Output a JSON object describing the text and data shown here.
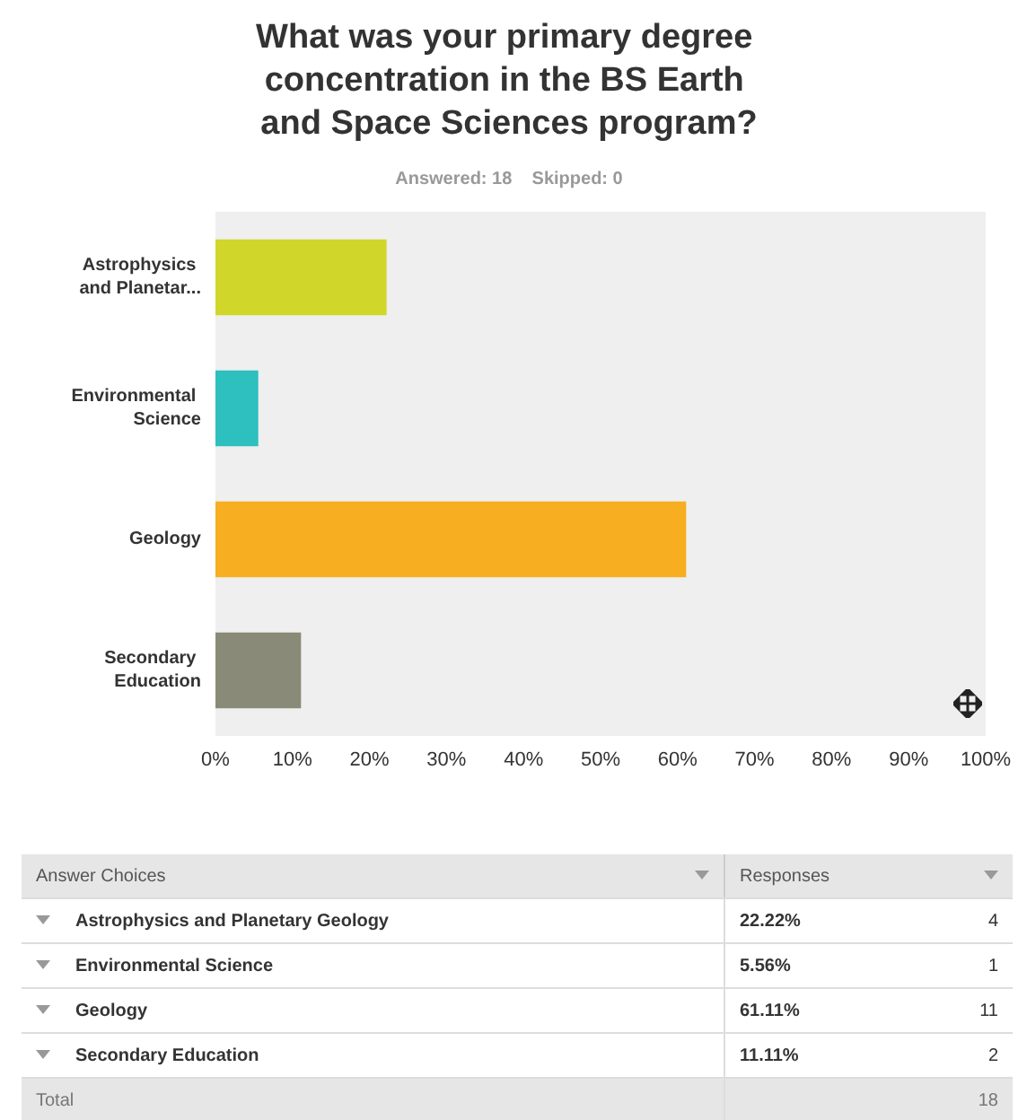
{
  "chart_data": [
    {
      "type": "bar",
      "orientation": "horizontal",
      "title": "What was your primary degree concentration in the BS Earth and Space Sciences program?",
      "subtitle": "Answered: 18    Skipped: 0",
      "categories": [
        "Astrophysics and Planetar...",
        "Environmental Science",
        "Geology",
        "Secondary Education"
      ],
      "values": [
        22.22,
        5.56,
        61.11,
        11.11
      ],
      "value_labels": [
        "22.22%",
        "5.56%",
        "61.11%",
        "11.11%"
      ],
      "colors": [
        "#d0d62a",
        "#2ebfbf",
        "#f7ae20",
        "#8a8a78"
      ],
      "xlim": [
        0,
        100
      ],
      "xticks": [
        {
          "value": 0,
          "label": "0%"
        },
        {
          "value": 10,
          "label": "10%"
        },
        {
          "value": 20,
          "label": "20%"
        },
        {
          "value": 30,
          "label": "30%"
        },
        {
          "value": 40,
          "label": "40%"
        },
        {
          "value": 50,
          "label": "50%"
        },
        {
          "value": 60,
          "label": "60%"
        },
        {
          "value": 70,
          "label": "70%"
        },
        {
          "value": 80,
          "label": "80%"
        },
        {
          "value": 90,
          "label": "90%"
        },
        {
          "value": 100,
          "label": "100%"
        }
      ],
      "grid": false
    },
    {
      "type": "other",
      "xlabel": "Answer Choices",
      "ylabel": "Responses",
      "categories": [
        "Astrophysics and Planetary Geology",
        "Environmental Science",
        "Geology",
        "Secondary Education"
      ],
      "data_labels": true,
      "values": [
        4,
        1,
        11,
        2
      ],
      "annotations": [
        "Total",
        "18"
      ]
    }
  ]
}
